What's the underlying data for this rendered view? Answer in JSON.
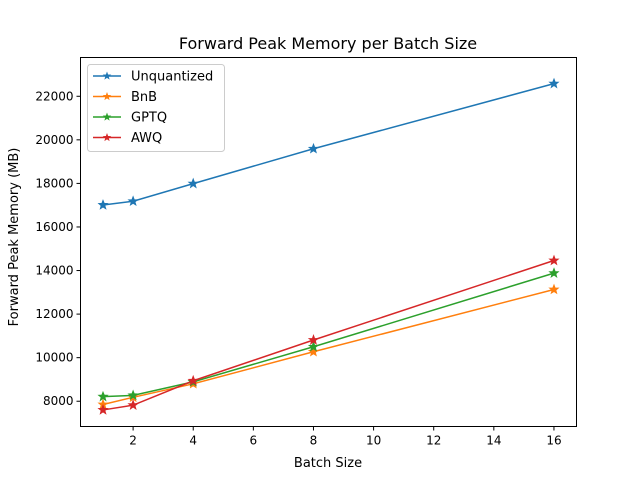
{
  "chart_data": {
    "type": "line",
    "title": "Forward Peak Memory per Batch Size",
    "xlabel": "Batch Size",
    "ylabel": "Forward Peak Memory (MB)",
    "xlim": [
      0.25,
      16.75
    ],
    "ylim": [
      6840,
      23780
    ],
    "xticks": [
      2,
      4,
      6,
      8,
      10,
      12,
      14,
      16
    ],
    "yticks": [
      8000,
      10000,
      12000,
      14000,
      16000,
      18000,
      20000,
      22000
    ],
    "grid": false,
    "legend_position": "upper-left",
    "marker": "star",
    "x": [
      1,
      2,
      4,
      8,
      16
    ],
    "series": [
      {
        "name": "Unquantized",
        "color": "#1f77b4",
        "values": [
          17010,
          17180,
          17990,
          19590,
          22580
        ]
      },
      {
        "name": "BnB",
        "color": "#ff7f0e",
        "values": [
          7850,
          8180,
          8800,
          10270,
          13130
        ]
      },
      {
        "name": "GPTQ",
        "color": "#2ca02c",
        "values": [
          8210,
          8270,
          8890,
          10500,
          13880
        ]
      },
      {
        "name": "AWQ",
        "color": "#d62728",
        "values": [
          7600,
          7820,
          8940,
          10810,
          14460
        ]
      }
    ]
  }
}
